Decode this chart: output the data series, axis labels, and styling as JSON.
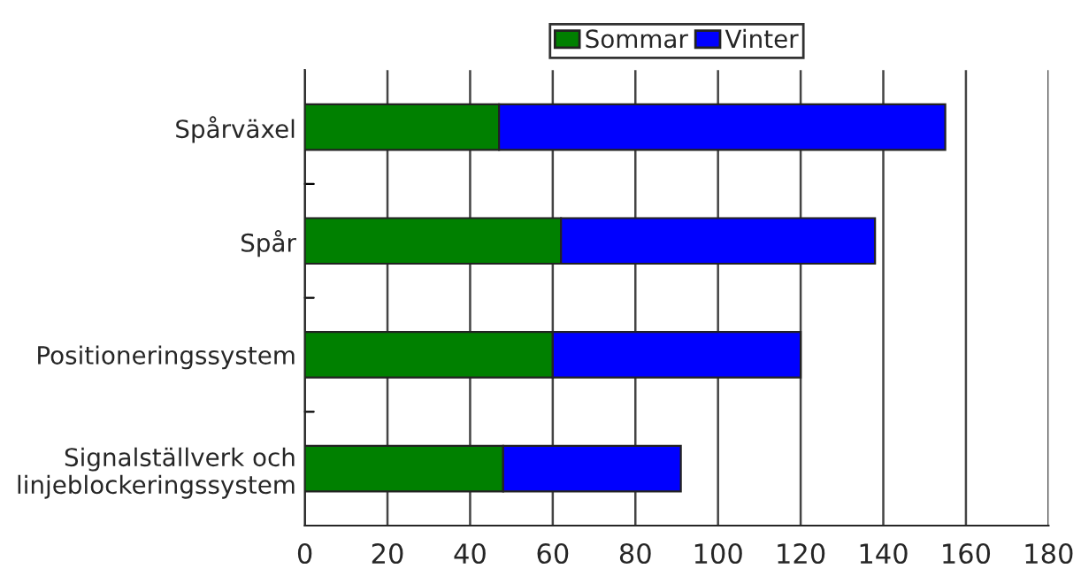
{
  "chart_data": {
    "type": "bar",
    "orientation": "horizontal",
    "stacked": true,
    "categories": [
      "Spårväxel",
      "Spår",
      "Positioneringssystem",
      "Signalställverk och\nlinjeblockeringssystem"
    ],
    "series": [
      {
        "name": "Sommar",
        "color": "#008000",
        "values": [
          47,
          62,
          60,
          48
        ]
      },
      {
        "name": "Vinter",
        "color": "#0000ff",
        "values": [
          108,
          76,
          60,
          43
        ]
      }
    ],
    "xlim": [
      0,
      180
    ],
    "xticks": [
      0,
      20,
      40,
      60,
      80,
      100,
      120,
      140,
      160,
      180
    ],
    "grid": "x",
    "legend": "top"
  }
}
